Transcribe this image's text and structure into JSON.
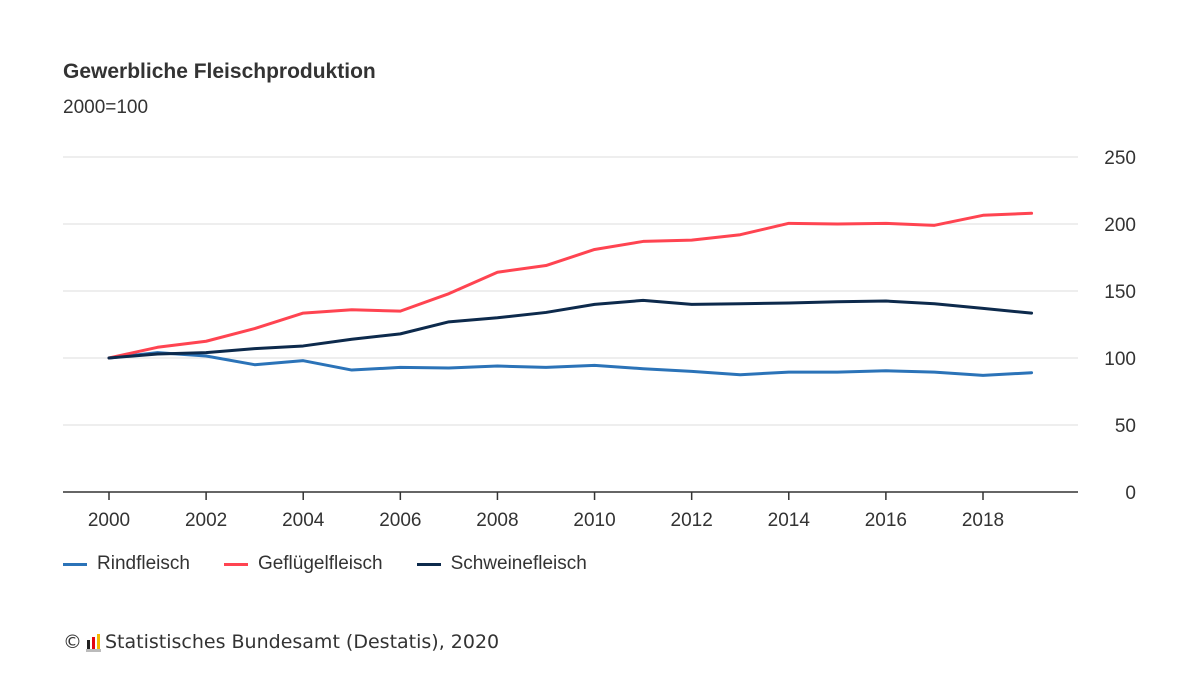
{
  "chart_data": {
    "type": "line",
    "title": "Gewerbliche Fleischproduktion",
    "subtitle": "2000=100",
    "xlabel": "",
    "ylabel": "",
    "x": [
      2000,
      2001,
      2002,
      2003,
      2004,
      2005,
      2006,
      2007,
      2008,
      2009,
      2010,
      2011,
      2012,
      2013,
      2014,
      2015,
      2016,
      2017,
      2018,
      2019
    ],
    "xticks": [
      "2000",
      "2002",
      "2004",
      "2006",
      "2008",
      "2010",
      "2012",
      "2014",
      "2016",
      "2018"
    ],
    "yticks": [
      "0",
      "50",
      "100",
      "150",
      "200",
      "250"
    ],
    "ylim": [
      0,
      250
    ],
    "grid": true,
    "legend_position": "bottom-left",
    "series": [
      {
        "name": "Rindfleisch",
        "color": "#2b73b8",
        "values": [
          100,
          104,
          101.5,
          95,
          98,
          91,
          93,
          92.5,
          94,
          93,
          94.5,
          92,
          90,
          87.5,
          89.5,
          89.5,
          90.5,
          89.5,
          87,
          89
        ]
      },
      {
        "name": "Geflügelfleisch",
        "color": "#ff4451",
        "values": [
          100,
          108,
          112.5,
          122,
          133.5,
          136,
          135,
          148,
          164,
          169,
          181,
          187,
          188,
          192,
          200.5,
          200,
          200.5,
          199,
          206.5,
          208
        ]
      },
      {
        "name": "Schweinefleisch",
        "color": "#0d2a4c",
        "values": [
          100,
          103,
          104,
          107,
          109,
          114,
          118,
          127,
          130,
          134,
          140,
          143,
          140,
          140.5,
          141,
          142,
          142.5,
          140.5,
          137,
          133.5
        ]
      }
    ]
  },
  "footer": {
    "copyright": "©",
    "source": "Statistisches Bundesamt (Destatis), 2020"
  }
}
